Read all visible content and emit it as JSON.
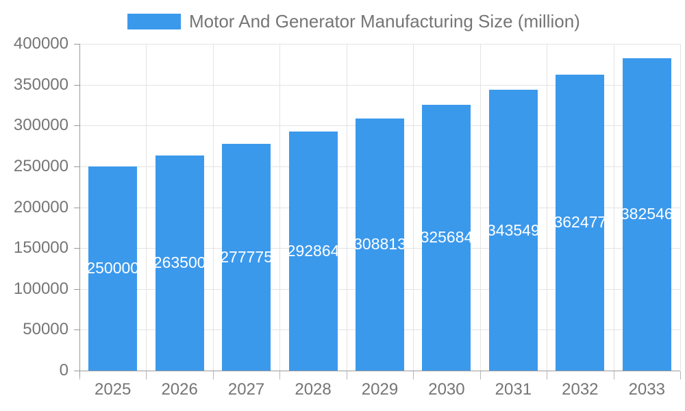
{
  "chart_data": {
    "type": "bar",
    "title": "Motor And Generator Manufacturing Size (million)",
    "legend": {
      "position": "top",
      "entries": [
        "Motor And Generator Manufacturing Size (million)"
      ]
    },
    "categories": [
      "2025",
      "2026",
      "2027",
      "2028",
      "2029",
      "2030",
      "2031",
      "2032",
      "2033"
    ],
    "series": [
      {
        "name": "Motor And Generator Manufacturing Size (million)",
        "values": [
          250000,
          263500,
          277775,
          292864,
          308813,
          325684,
          343549,
          362477,
          382546
        ]
      }
    ],
    "xlabel": "",
    "ylabel": "",
    "ylim": [
      0,
      400000
    ],
    "yticks": [
      0,
      50000,
      100000,
      150000,
      200000,
      250000,
      300000,
      350000,
      400000
    ],
    "grid": true,
    "value_labels_position": "inside-center",
    "value_label_color": "#FFFFFF",
    "colors": {
      "bar": "#3B99EC",
      "axis_line": "#999999",
      "gridline": "#E3E3E3",
      "tick_label": "#757575",
      "title_text": "#757575",
      "background": "#FFFFFF"
    }
  }
}
